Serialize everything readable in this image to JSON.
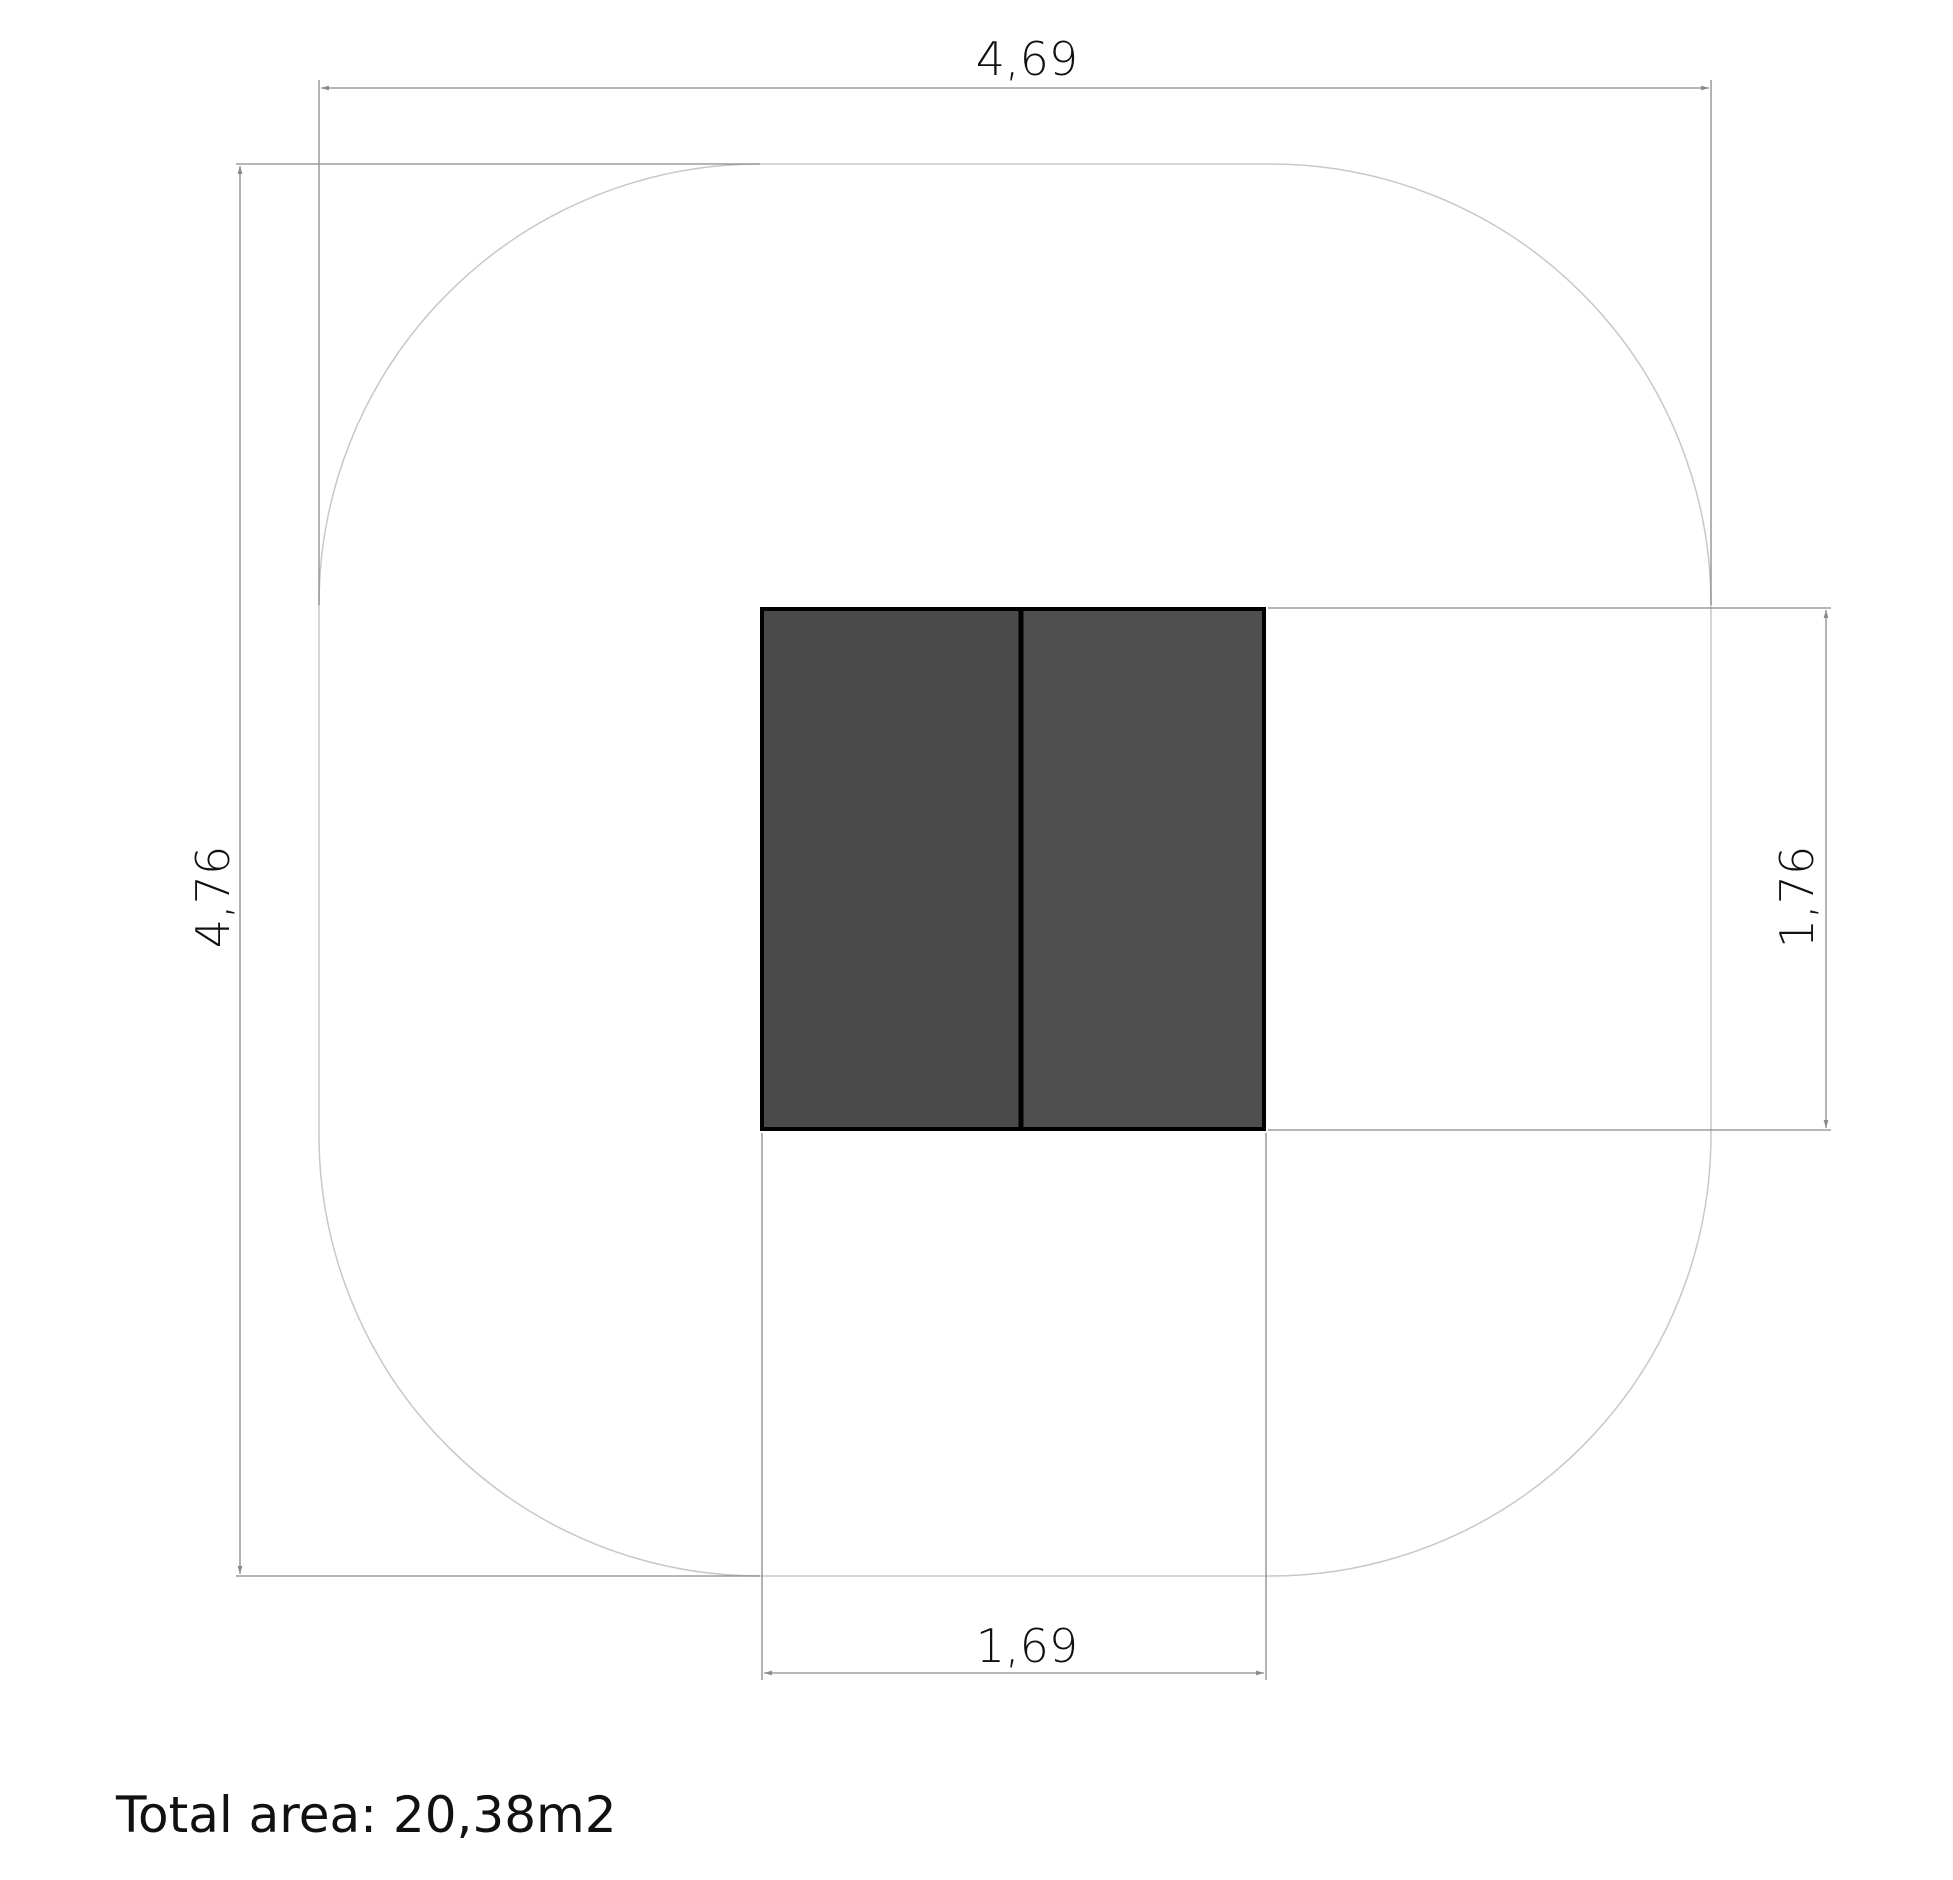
{
  "dimensions": {
    "overall_width": "4,69",
    "overall_depth": "4,76",
    "equipment_depth": "1,76",
    "equipment_width": "1,69"
  },
  "total_area": "Total area: 20,38m2",
  "colors": {
    "safety_zone_outline": "#c8c8c8",
    "dimension_line": "#8a8a8a",
    "equipment_fill_left": "#4a4a4a",
    "equipment_fill_right": "#4f4f4f",
    "equipment_outline": "#000000"
  }
}
